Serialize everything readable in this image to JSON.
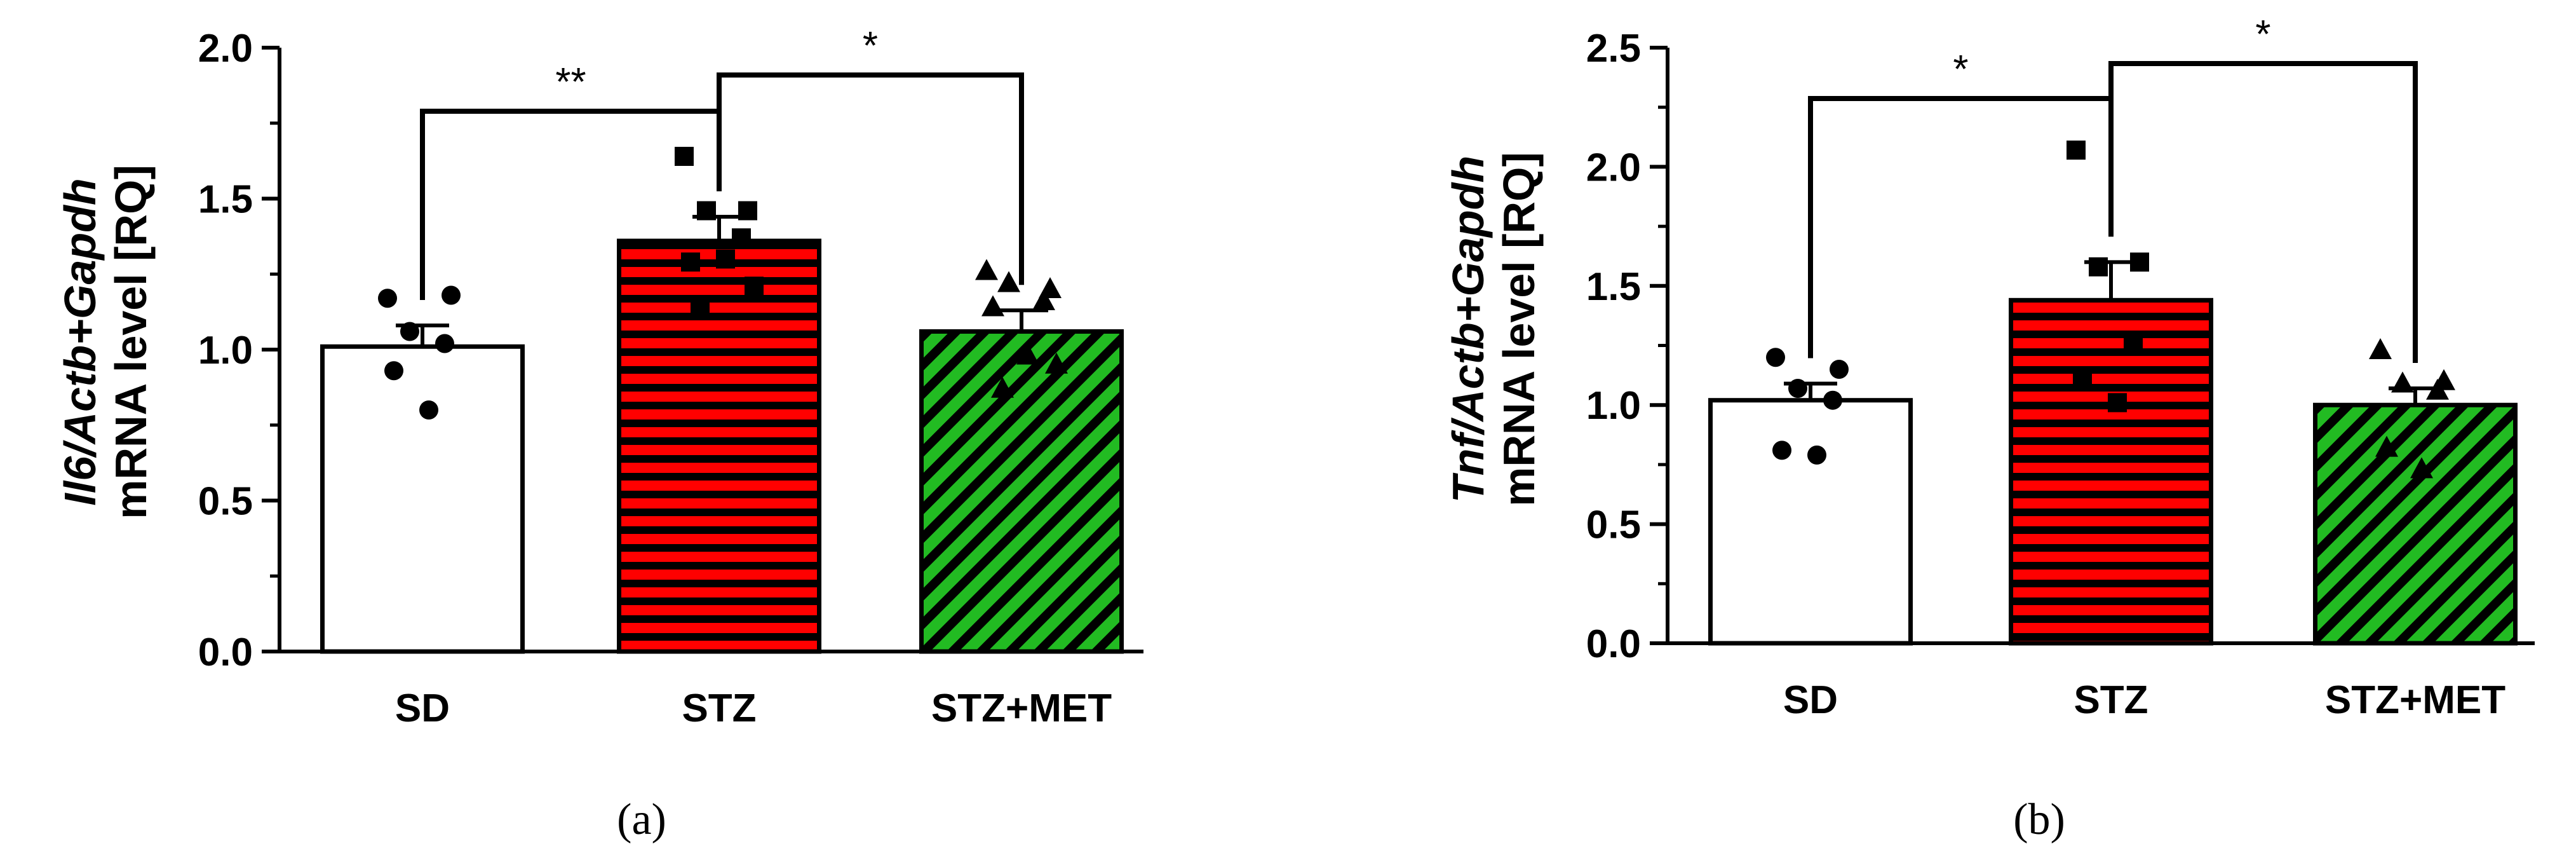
{
  "chart_data": [
    {
      "type": "bar",
      "panel_label": "(a)",
      "categories": [
        "SD",
        "STZ",
        "STZ+MET"
      ],
      "values": [
        1.01,
        1.36,
        1.06
      ],
      "errors": [
        0.07,
        0.08,
        0.07
      ],
      "points": [
        [
          1.17,
          1.18,
          1.06,
          1.02,
          0.93,
          0.8
        ],
        [
          1.64,
          1.46,
          1.46,
          1.37,
          1.29,
          1.3,
          1.21,
          1.13
        ],
        [
          1.26,
          1.2,
          1.22,
          1.16,
          1.14,
          0.98,
          0.95,
          0.87
        ]
      ],
      "markers": [
        "circle",
        "square",
        "triangle"
      ],
      "fills": [
        "#ffffff",
        "#ff0000",
        "#22bb22"
      ],
      "patterns": [
        "none",
        "horizontal-stripes",
        "diagonal-stripes"
      ],
      "ylabel_italic": "Il6/Actb+Gapdh",
      "ylabel": "mRNA level [RQ]",
      "ylim": [
        0,
        2.0
      ],
      "yticks": [
        "0.0",
        "0.5",
        "1.0",
        "1.5",
        "2.0"
      ],
      "brackets": [
        {
          "from": 0,
          "to": 1,
          "label": "**"
        },
        {
          "from": 1,
          "to": 2,
          "label": "*"
        }
      ]
    },
    {
      "type": "bar",
      "panel_label": "(b)",
      "categories": [
        "SD",
        "STZ",
        "STZ+MET"
      ],
      "values": [
        1.02,
        1.44,
        1.0
      ],
      "errors": [
        0.07,
        0.16,
        0.07
      ],
      "points": [
        [
          1.2,
          1.15,
          1.07,
          1.02,
          0.81,
          0.79
        ],
        [
          2.07,
          1.6,
          1.58,
          1.25,
          1.1,
          1.01
        ],
        [
          1.23,
          1.1,
          1.09,
          1.06,
          0.82,
          0.73
        ]
      ],
      "markers": [
        "circle",
        "square",
        "triangle"
      ],
      "fills": [
        "#ffffff",
        "#ff0000",
        "#22bb22"
      ],
      "patterns": [
        "none",
        "horizontal-stripes",
        "diagonal-stripes"
      ],
      "ylabel_italic": "Tnf/Actb+Gapdh",
      "ylabel": "mRNA level [RQ]",
      "ylim": [
        0,
        2.5
      ],
      "yticks": [
        "0.0",
        "0.5",
        "1.0",
        "1.5",
        "2.0",
        "2.5"
      ],
      "brackets": [
        {
          "from": 0,
          "to": 1,
          "label": "*"
        },
        {
          "from": 1,
          "to": 2,
          "label": "*"
        }
      ]
    }
  ]
}
